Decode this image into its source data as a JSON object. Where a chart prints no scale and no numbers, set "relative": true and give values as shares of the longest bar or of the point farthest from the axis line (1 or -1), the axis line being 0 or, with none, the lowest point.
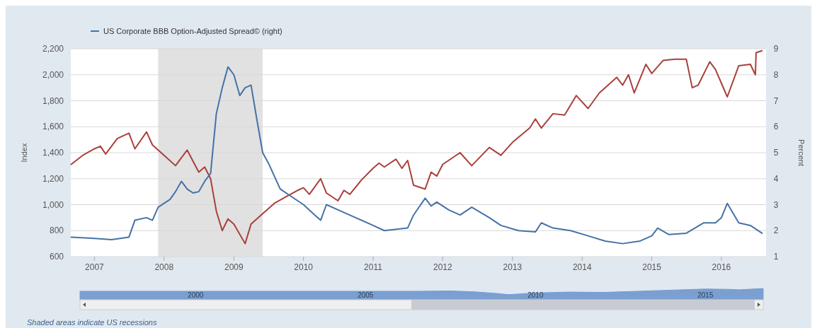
{
  "chart_data": [
    {
      "type": "line",
      "ylabel": "Index",
      "y2label": "Percent",
      "legend": "top left",
      "grid": "y",
      "xlim": [
        "2006-08-30",
        "2016-08-22"
      ],
      "xticks": [
        "2007",
        "2008",
        "2009",
        "2010",
        "2011",
        "2012",
        "2013",
        "2014",
        "2015",
        "2016"
      ],
      "ylim": [
        600,
        2200
      ],
      "yticks": [
        {
          "value": 600,
          "label": "600"
        },
        {
          "value": 800,
          "label": "800"
        },
        {
          "value": 1000,
          "label": "1,000"
        },
        {
          "value": 1200,
          "label": "1,200"
        },
        {
          "value": 1400,
          "label": "1,400"
        },
        {
          "value": 1600,
          "label": "1,600"
        },
        {
          "value": 1800,
          "label": "1,800"
        },
        {
          "value": 2000,
          "label": "2,000"
        },
        {
          "value": 2200,
          "label": "2,200"
        }
      ],
      "y2lim": [
        1,
        9
      ],
      "y2ticks": [
        1,
        2,
        3,
        4,
        5,
        6,
        7,
        8,
        9
      ],
      "bands": [
        {
          "axis": "x",
          "from": "2007-12",
          "to": "2009-06",
          "color": "#e1e1e1"
        }
      ],
      "annotations": [
        "Shaded areas indicate US recessions"
      ],
      "series": [
        {
          "color": "#a9403a",
          "x": [
            "2006-09",
            "2006-11",
            "2007-01",
            "2007-02",
            "2007-03",
            "2007-05",
            "2007-07",
            "2007-08",
            "2007-10",
            "2007-11",
            "2008-01",
            "2008-03",
            "2008-05",
            "2008-07",
            "2008-08",
            "2008-09",
            "2008-10",
            "2008-11",
            "2008-12",
            "2009-01",
            "2009-03",
            "2009-04",
            "2009-06",
            "2009-08",
            "2009-10",
            "2009-12",
            "2010-01",
            "2010-02",
            "2010-04",
            "2010-05",
            "2010-07",
            "2010-08",
            "2010-09",
            "2010-11",
            "2011-01",
            "2011-02",
            "2011-03",
            "2011-05",
            "2011-06",
            "2011-07",
            "2011-08",
            "2011-10",
            "2011-11",
            "2011-12",
            "2012-01",
            "2012-04",
            "2012-06",
            "2012-09",
            "2012-11",
            "2013-01",
            "2013-04",
            "2013-05",
            "2013-06",
            "2013-08",
            "2013-10",
            "2013-12",
            "2014-02",
            "2014-04",
            "2014-07",
            "2014-08",
            "2014-09",
            "2014-10",
            "2014-12",
            "2015-01",
            "2015-03",
            "2015-05",
            "2015-07",
            "2015-08",
            "2015-09",
            "2015-11",
            "2015-12",
            "2016-02",
            "2016-04",
            "2016-06",
            "2016-06-27",
            "2016-07",
            "2016-08"
          ],
          "values": [
            1310,
            1380,
            1430,
            1450,
            1390,
            1510,
            1550,
            1430,
            1560,
            1460,
            1380,
            1300,
            1420,
            1250,
            1290,
            1200,
            950,
            800,
            890,
            850,
            700,
            850,
            930,
            1010,
            1060,
            1110,
            1130,
            1080,
            1200,
            1090,
            1030,
            1110,
            1080,
            1190,
            1280,
            1320,
            1290,
            1350,
            1280,
            1340,
            1150,
            1120,
            1250,
            1220,
            1310,
            1400,
            1300,
            1440,
            1380,
            1480,
            1590,
            1660,
            1590,
            1700,
            1690,
            1840,
            1740,
            1860,
            1980,
            1920,
            2000,
            1860,
            2080,
            2010,
            2110,
            2120,
            2120,
            1900,
            1920,
            2100,
            2040,
            1830,
            2070,
            2080,
            2000,
            2170,
            2185
          ]
        },
        {
          "name": "US Corporate BBB Option-Adjusted Spread© (right)",
          "color": "#4572a7",
          "axis": "y2",
          "x": [
            "2006-09",
            "2007-01",
            "2007-04",
            "2007-07",
            "2007-08",
            "2007-10",
            "2007-11",
            "2007-12",
            "2008-02",
            "2008-03",
            "2008-04",
            "2008-05",
            "2008-06",
            "2008-07",
            "2008-08",
            "2008-09",
            "2008-10",
            "2008-11",
            "2008-12",
            "2009-01",
            "2009-02",
            "2009-03",
            "2009-04",
            "2009-05",
            "2009-06",
            "2009-07",
            "2009-09",
            "2009-11",
            "2010-01",
            "2010-03",
            "2010-04",
            "2010-05",
            "2010-07",
            "2010-10",
            "2011-01",
            "2011-03",
            "2011-07",
            "2011-08",
            "2011-10",
            "2011-11",
            "2011-12",
            "2012-02",
            "2012-04",
            "2012-06",
            "2012-09",
            "2012-11",
            "2013-02",
            "2013-05",
            "2013-06",
            "2013-08",
            "2013-11",
            "2014-02",
            "2014-05",
            "2014-08",
            "2014-11",
            "2015-01",
            "2015-02",
            "2015-04",
            "2015-07",
            "2015-10",
            "2015-12",
            "2016-01",
            "2016-02",
            "2016-04",
            "2016-06",
            "2016-08"
          ],
          "values": [
            1.75,
            1.7,
            1.65,
            1.75,
            2.4,
            2.5,
            2.4,
            2.9,
            3.2,
            3.5,
            3.9,
            3.6,
            3.45,
            3.5,
            3.9,
            4.2,
            6.5,
            7.5,
            8.3,
            8.0,
            7.2,
            7.5,
            7.6,
            6.3,
            5.0,
            4.6,
            3.6,
            3.3,
            3.0,
            2.6,
            2.4,
            3.0,
            2.8,
            2.5,
            2.2,
            2.0,
            2.1,
            2.6,
            3.25,
            2.95,
            3.1,
            2.8,
            2.6,
            2.9,
            2.5,
            2.2,
            2.0,
            1.95,
            2.3,
            2.1,
            2.0,
            1.8,
            1.6,
            1.5,
            1.6,
            1.8,
            2.1,
            1.85,
            1.9,
            2.3,
            2.3,
            2.5,
            3.05,
            2.3,
            2.2,
            1.9
          ]
        }
      ]
    },
    {
      "type": "area",
      "relative": true,
      "xlim": [
        1996.6,
        2016.7
      ],
      "xticks": [
        2000,
        2005,
        2010,
        2015
      ],
      "series": [
        {
          "color": "#7a9fd0",
          "x": [
            1996.6,
            2006.6,
            2007.5,
            2008.2,
            2008.9,
            2009.2,
            2010,
            2011,
            2012,
            2013,
            2014,
            2015,
            2015.7,
            2016,
            2016.7
          ],
          "values": [
            0.75,
            0.75,
            0.78,
            0.7,
            0.55,
            0.45,
            0.6,
            0.68,
            0.65,
            0.75,
            0.85,
            0.95,
            0.92,
            0.88,
            1
          ]
        }
      ]
    }
  ]
}
